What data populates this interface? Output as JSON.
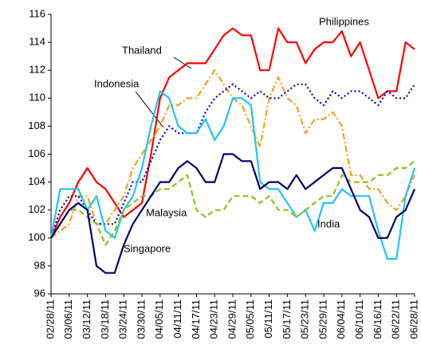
{
  "chart_data": {
    "type": "line",
    "categories": [
      "02/28/11",
      null,
      "03/06/11",
      null,
      "03/12/11",
      null,
      "03/18/11",
      null,
      "03/24/11",
      null,
      "03/30/11",
      null,
      "04/05/11",
      null,
      "04/11/11",
      null,
      "04/17/11",
      null,
      "04/23/11",
      null,
      "04/29/11",
      null,
      "05/05/11",
      null,
      "05/11/11",
      null,
      "05/17/11",
      null,
      "05/23/11",
      null,
      "05/29/11",
      null,
      "06/04/11",
      null,
      "06/10/11",
      null,
      "06/16/11",
      null,
      "06/22/11",
      null,
      "06/28/11"
    ],
    "series": [
      {
        "name": "Philippines",
        "color": "#ff0000",
        "style": "solid",
        "values": [
          100,
          101.5,
          102.5,
          104,
          105,
          104,
          103.5,
          102.5,
          101.5,
          102,
          102.5,
          106,
          110,
          111.5,
          112,
          112.5,
          112.5,
          112.5,
          113.5,
          114.5,
          115,
          114.5,
          114.5,
          112,
          112,
          115,
          114,
          114,
          112.5,
          113.5,
          114,
          114,
          114.8,
          113,
          114,
          112,
          110,
          110.5,
          110.5,
          114,
          113.5
        ]
      },
      {
        "name": "Thailand",
        "color": "#f5a020",
        "style": "dashdot",
        "values": [
          100,
          100.5,
          101,
          103,
          103,
          101,
          101,
          102,
          103,
          105,
          106,
          107,
          108,
          109.5,
          109.5,
          110,
          110,
          111,
          112,
          111,
          110,
          109.5,
          108,
          106.5,
          110,
          111.5,
          110,
          109.5,
          107.5,
          108.5,
          108.5,
          109,
          108,
          104.5,
          104.5,
          103.5,
          103.5,
          102.5,
          102,
          103,
          104.5
        ]
      },
      {
        "name": "Indonesia",
        "color": "#0000cc",
        "style": "dotted",
        "values": [
          100,
          102,
          103,
          103,
          102,
          101,
          101,
          101,
          102.5,
          104,
          104,
          105.5,
          107,
          108,
          107.5,
          107.5,
          107.5,
          109,
          110,
          110.5,
          111,
          110.5,
          110,
          110.5,
          110,
          110,
          110.5,
          111,
          111,
          110,
          109.5,
          110.5,
          110,
          110.5,
          110.5,
          110,
          109.5,
          110.5,
          110,
          110,
          111
        ]
      },
      {
        "name": "India",
        "color": "#22c4f0",
        "style": "solid",
        "values": [
          100,
          103.5,
          103.5,
          103.5,
          102,
          103,
          100.5,
          100,
          102,
          103,
          105,
          108,
          110.5,
          110,
          108,
          107.5,
          107.5,
          108.5,
          107,
          108,
          110,
          110,
          109.5,
          104,
          103.5,
          103.5,
          102.5,
          101.5,
          102,
          100.5,
          102.5,
          102.5,
          103.5,
          103,
          103,
          103,
          100.5,
          98.5,
          98.5,
          103,
          105
        ]
      },
      {
        "name": "Malaysia",
        "color": "#8cc21c",
        "style": "dashed",
        "values": [
          100,
          101,
          102,
          102,
          101.5,
          101,
          99.5,
          100.5,
          102,
          102.5,
          103,
          103,
          103.5,
          103.5,
          104,
          104.5,
          102,
          101.5,
          102,
          102,
          103,
          103,
          103,
          102.5,
          103,
          102,
          102,
          101.5,
          102,
          102.5,
          103,
          103,
          104.5,
          104,
          104,
          104,
          104.5,
          104.5,
          105,
          105,
          105.5
        ]
      },
      {
        "name": "Singapore",
        "color": "#000066",
        "style": "solid",
        "values": [
          100,
          101,
          102,
          102.5,
          102,
          98,
          97.5,
          97.5,
          99.5,
          101,
          102,
          103,
          104,
          104,
          105,
          105.5,
          105,
          104,
          104,
          106,
          106,
          105.5,
          105.5,
          103.5,
          104,
          104,
          103.5,
          104.5,
          103.5,
          104,
          104.5,
          105,
          105,
          103.5,
          102,
          101.5,
          100,
          100,
          101.5,
          102,
          103.5
        ]
      }
    ],
    "ylim": [
      96,
      116
    ],
    "yticks": [
      96,
      98,
      100,
      102,
      104,
      106,
      108,
      110,
      112,
      114,
      116
    ],
    "grid": false
  }
}
